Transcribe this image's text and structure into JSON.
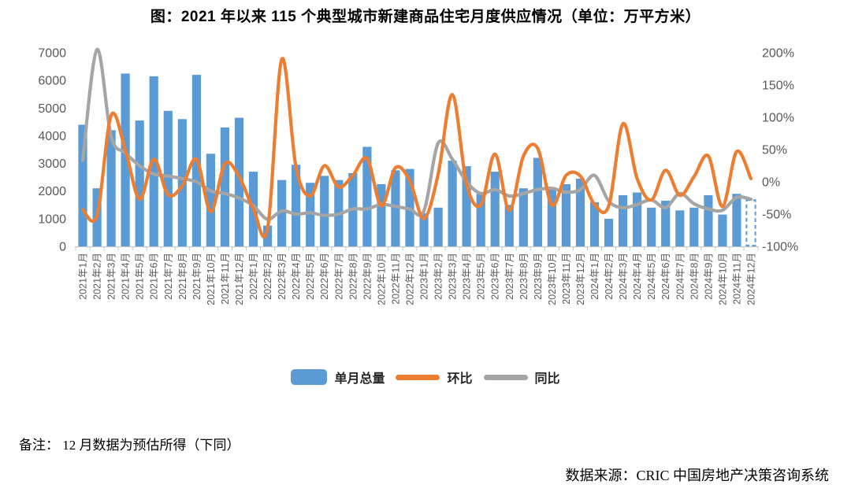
{
  "title": "图：2021 年以来 115 个典型城市新建商品住宅月度供应情况（单位：万平方米）",
  "legend": {
    "bar_label": "单月总量",
    "mom_label": "环比",
    "yoy_label": "同比"
  },
  "footnote": "备注： 12 月数据为预估所得（下同）",
  "source": "数据来源：CRIC 中国房地产决策咨询系统",
  "colors": {
    "bar": "#5B9BD5",
    "mom_line": "#ED7D31",
    "yoy_line": "#A5A5A5",
    "axis_text": "#595959",
    "axis_line": "#C8C8C8"
  },
  "chart_data": {
    "type": "bar",
    "title": "2021年以来115个典型城市新建商品住宅月度供应情况",
    "unit": "万平方米",
    "categories": [
      "2021年1月",
      "2021年2月",
      "2021年3月",
      "2021年4月",
      "2021年5月",
      "2021年6月",
      "2021年7月",
      "2021年8月",
      "2021年9月",
      "2021年10月",
      "2021年11月",
      "2021年12月",
      "2022年1月",
      "2022年2月",
      "2022年3月",
      "2022年4月",
      "2022年5月",
      "2022年6月",
      "2022年7月",
      "2022年8月",
      "2022年9月",
      "2022年10月",
      "2022年11月",
      "2022年12月",
      "2023年1月",
      "2023年2月",
      "2023年3月",
      "2023年4月",
      "2023年5月",
      "2023年6月",
      "2023年7月",
      "2023年8月",
      "2023年9月",
      "2023年10月",
      "2023年11月",
      "2023年12月",
      "2024年1月",
      "2024年2月",
      "2024年3月",
      "2024年4月",
      "2024年5月",
      "2024年6月",
      "2024年7月",
      "2024年8月",
      "2024年9月",
      "2024年10月",
      "2024年11月",
      "2024年12月"
    ],
    "series": [
      {
        "name": "单月总量",
        "kind": "bar",
        "axis": "left",
        "values": [
          4400,
          2100,
          4200,
          6250,
          4550,
          6150,
          4900,
          4600,
          6200,
          3350,
          4300,
          4650,
          2700,
          750,
          2400,
          2950,
          2300,
          2550,
          2400,
          2650,
          3600,
          2250,
          2750,
          2800,
          1200,
          1400,
          3100,
          2900,
          1900,
          2700,
          1500,
          2100,
          3200,
          2050,
          2250,
          2450,
          1600,
          1000,
          1850,
          1950,
          1400,
          1650,
          1300,
          1400,
          1850,
          1150,
          1900,
          1700
        ]
      },
      {
        "name": "环比",
        "kind": "line",
        "axis": "right",
        "values": [
          -43,
          -52,
          103,
          49,
          -27,
          35,
          -20,
          -6,
          35,
          -46,
          28,
          8,
          -42,
          -72,
          190,
          23,
          -22,
          25,
          -8,
          10,
          36,
          -37,
          22,
          2,
          -57,
          12,
          135,
          -3,
          -36,
          43,
          -44,
          40,
          52,
          -36,
          10,
          9,
          -35,
          -37,
          90,
          5,
          -28,
          18,
          -21,
          8,
          40,
          -38,
          47,
          5
        ]
      },
      {
        "name": "同比",
        "kind": "line",
        "axis": "right",
        "values": [
          33,
          205,
          70,
          45,
          25,
          12,
          9,
          5,
          0,
          -14,
          -18,
          -25,
          -37,
          -58,
          -45,
          -50,
          -48,
          -52,
          -50,
          -42,
          -42,
          -35,
          -38,
          -42,
          -45,
          60,
          35,
          0,
          -18,
          -12,
          -22,
          -18,
          -12,
          -10,
          -16,
          -12,
          10,
          -30,
          -40,
          -35,
          -28,
          -40,
          -18,
          -34,
          -42,
          -44,
          -24,
          -27
        ]
      }
    ],
    "left_axis": {
      "min": 0,
      "max": 7000,
      "ticks": [
        0,
        1000,
        2000,
        3000,
        4000,
        5000,
        6000,
        7000
      ]
    },
    "right_axis": {
      "min": -100,
      "max": 200,
      "tick_labels": [
        "-100%",
        "-50%",
        "0%",
        "50%",
        "100%",
        "150%",
        "200%"
      ],
      "ticks": [
        -100,
        -50,
        0,
        50,
        100,
        150,
        200
      ]
    },
    "grid": false,
    "legend_position": "bottom",
    "last_bar_dashed_estimate": true
  }
}
